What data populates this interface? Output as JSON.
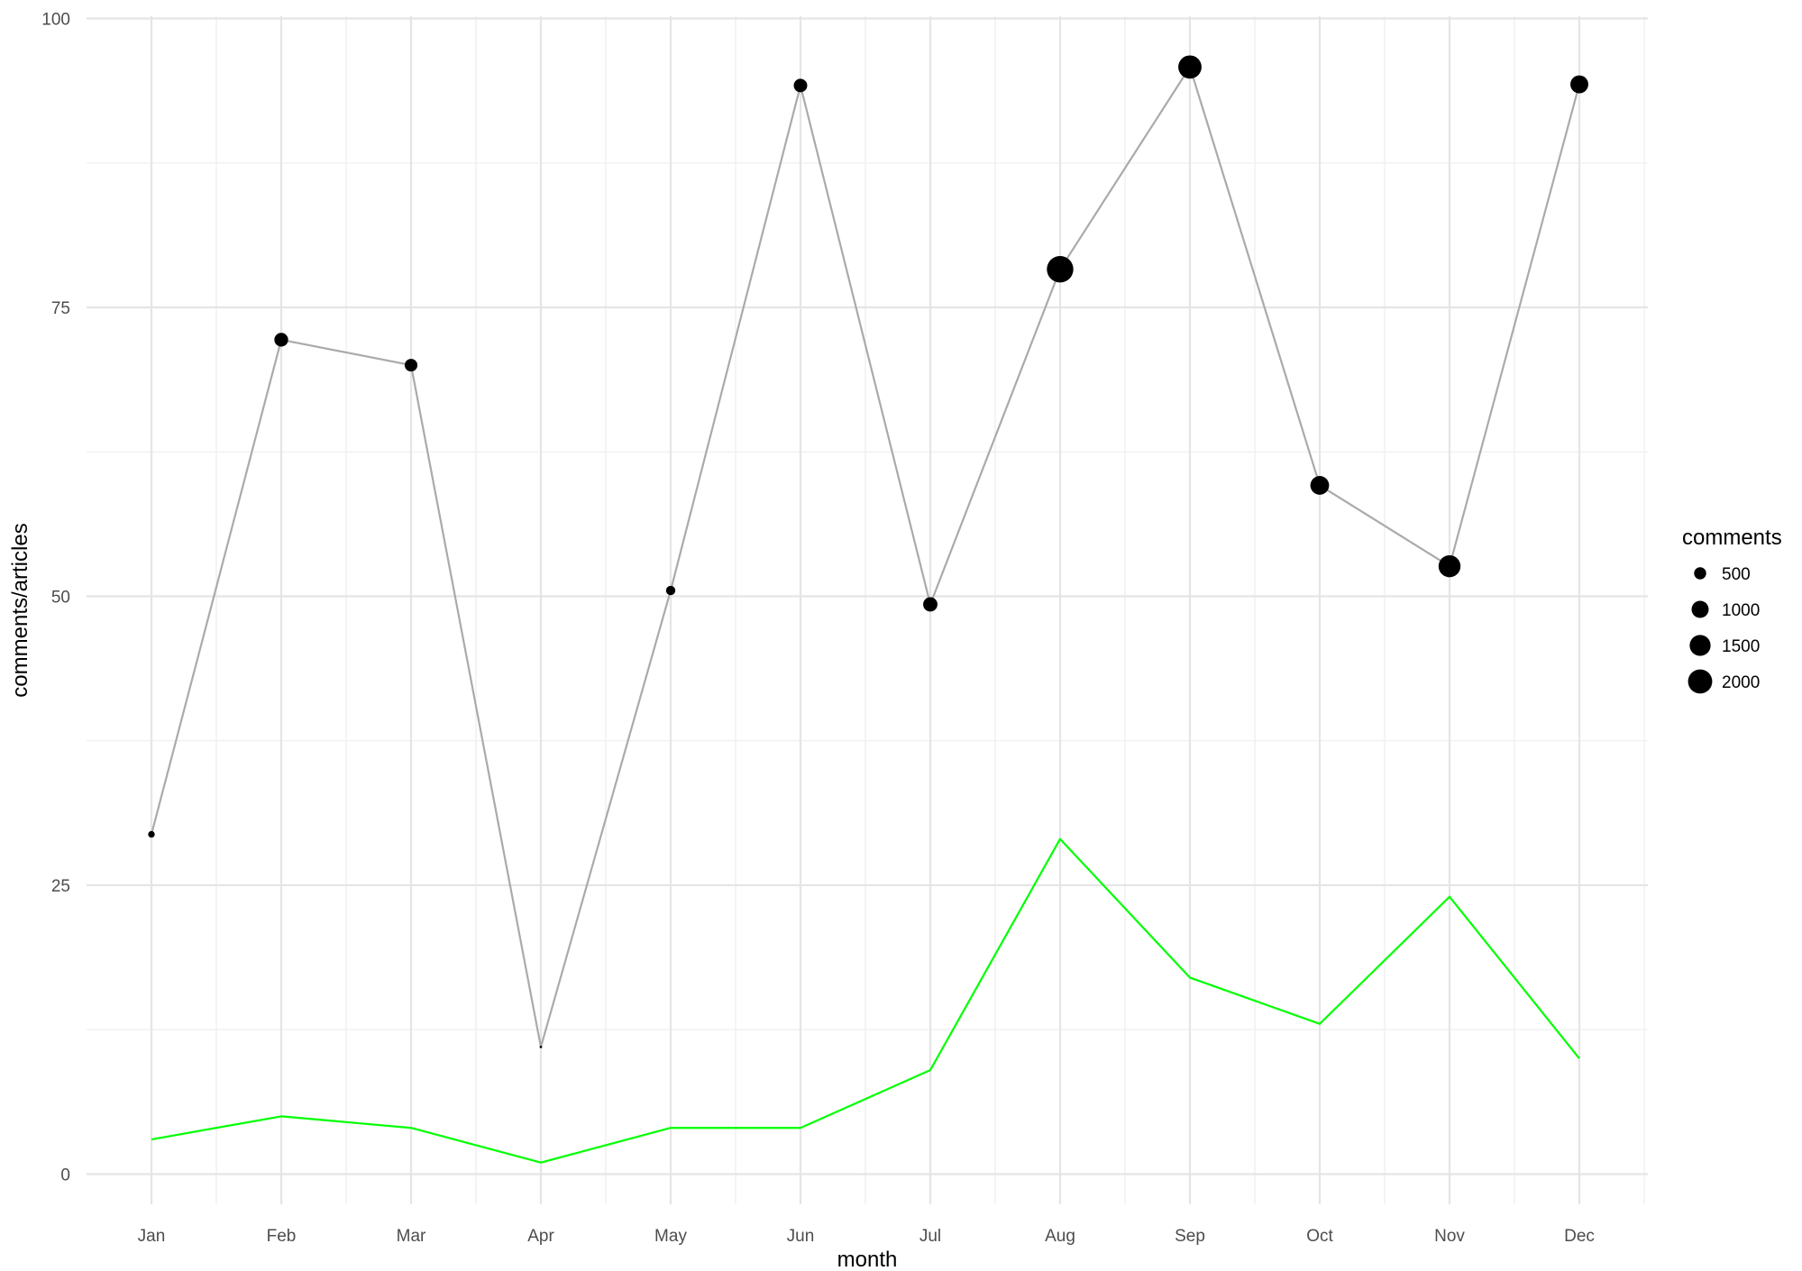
{
  "chart_data": {
    "type": "line",
    "categories": [
      "Jan",
      "Feb",
      "Mar",
      "Apr",
      "May",
      "Jun",
      "Jul",
      "Aug",
      "Sep",
      "Oct",
      "Nov",
      "Dec"
    ],
    "xlabel": "month",
    "ylabel": "comments/articles",
    "ylim": [
      -2.5,
      100
    ],
    "yticks": [
      0,
      25,
      50,
      75,
      100
    ],
    "grid": true,
    "legend": {
      "title": "comments",
      "placement": "right",
      "entries": [
        {
          "label": "500",
          "value": 500
        },
        {
          "label": "1000",
          "value": 1000
        },
        {
          "label": "1500",
          "value": 1500
        },
        {
          "label": "2000",
          "value": 2000
        }
      ]
    },
    "series": [
      {
        "values": [
          29.4,
          72.2,
          70.0,
          11.0,
          50.5,
          94.2,
          49.3,
          78.3,
          95.8,
          59.6,
          52.6,
          94.3
        ],
        "comments": [
          150,
          650,
          550,
          20,
          300,
          620,
          700,
          2400,
          1850,
          1200,
          1650,
          1100
        ],
        "color": "#aaaaaa",
        "marker_color": "#000000"
      },
      {
        "values": [
          3,
          5,
          4,
          1,
          4,
          4,
          9,
          29,
          17,
          13,
          24,
          10
        ],
        "color": "#00ff00"
      }
    ]
  }
}
